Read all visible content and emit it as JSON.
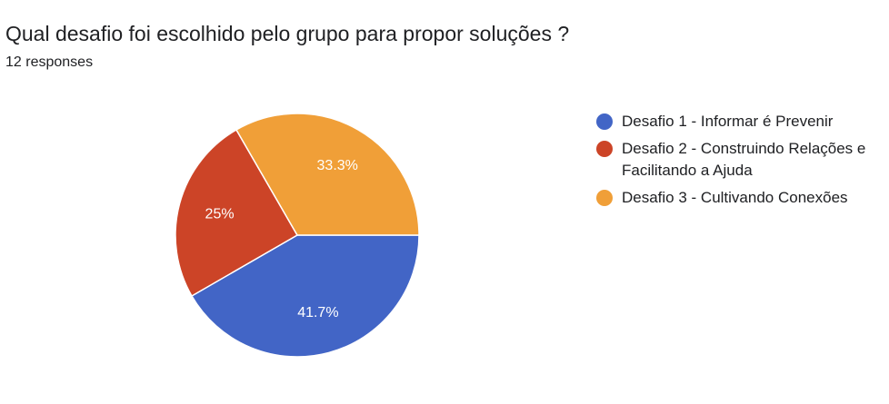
{
  "title": "Qual desafio foi escolhido pelo grupo para propor soluções ?",
  "subtitle": "12 responses",
  "chart_data": {
    "type": "pie",
    "title": "Qual desafio foi escolhido pelo grupo para propor soluções ?",
    "total_responses": 12,
    "slices": [
      {
        "label": "Desafio 1 - Informar é Prevenir",
        "value": 5,
        "percent_label": "41.7%",
        "color": "#4265c6"
      },
      {
        "label": "Desafio 2 - Construindo Relações e Facilitando a Ajuda",
        "value": 3,
        "percent_label": "25%",
        "color": "#cc4427"
      },
      {
        "label": "Desafio 3 - Cultivando Conexões",
        "value": 4,
        "percent_label": "33.3%",
        "color": "#f09f38"
      }
    ],
    "legend_position": "right"
  }
}
